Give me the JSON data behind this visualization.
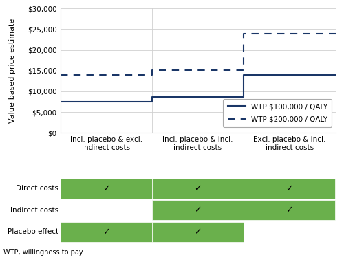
{
  "ylabel": "Value-based price estimate",
  "ylim": [
    0,
    30000
  ],
  "yticks": [
    0,
    5000,
    10000,
    15000,
    20000,
    25000,
    30000
  ],
  "ytick_labels": [
    "$0",
    "$5,000",
    "$10,000",
    "$15,000",
    "$20,000",
    "$25,000",
    "$30,000"
  ],
  "x_labels": [
    "Incl. placebo & excl.\nindirect costs",
    "Incl. placebo & incl.\nindirect costs",
    "Excl. placebo & incl.\nindirect costs"
  ],
  "line_color": "#1a3667",
  "line1_values": [
    7500,
    7500,
    8700,
    8700,
    14000,
    14000
  ],
  "line2_values": [
    14000,
    14000,
    15200,
    15200,
    23900,
    23900
  ],
  "x_positions": [
    0,
    1,
    1,
    2,
    2,
    3
  ],
  "legend_labels": [
    "WTP $100,000 / QALY",
    "WTP $200,000 / QALY"
  ],
  "green_color": "#6ab04c",
  "table_rows": [
    "Direct costs",
    "Indirect costs",
    "Placebo effect"
  ],
  "table_checks": [
    [
      true,
      true,
      true
    ],
    [
      false,
      true,
      true
    ],
    [
      true,
      true,
      false
    ]
  ],
  "footnote": "WTP, willingness to pay",
  "grid_color": "#d0d0d0"
}
